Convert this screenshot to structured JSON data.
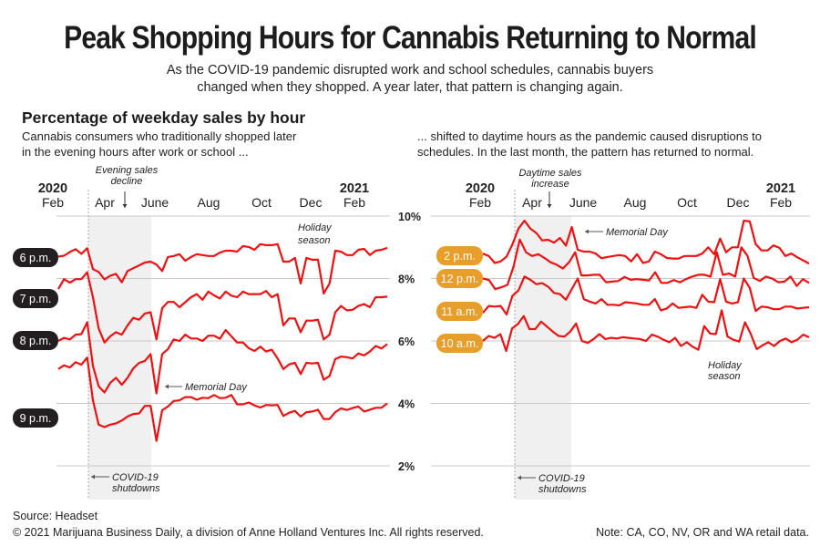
{
  "header": {
    "title": "Peak Shopping Hours for Cannabis Returning to Normal",
    "subtitle_line1": "As the COVID-19 pandemic disrupted work and school schedules, cannabis buyers",
    "subtitle_line2": "changed when they shopped. A year later, that pattern is changing again."
  },
  "section_title": "Percentage of weekday sales by hour",
  "left_desc_line1": "Cannabis consumers who traditionally shopped later",
  "left_desc_line2": "in the evening hours after work or school ...",
  "right_desc_line1": "... shifted to daytime hours as the pandemic caused disruptions to",
  "right_desc_line2": "schedules. In the last month, the pattern has returned to normal.",
  "footer": {
    "source": "Source: Headset",
    "copyright": "© 2021 Marijuana Business Daily, a division of Anne Holland Ventures Inc. All rights reserved.",
    "note": "Note: CA, CO, NV, OR and WA retail data."
  },
  "colors": {
    "line": "#ee1111",
    "evening_badge": "#231f20",
    "daytime_badge": "#e89e2a",
    "shade": "#f0f0f0",
    "grid": "#c8c8c8"
  },
  "chart_data": [
    {
      "type": "line",
      "title": "Percentage of weekday sales by hour — evening hours",
      "x_ticks": [
        {
          "year": "2020",
          "month": "Feb"
        },
        {
          "year": "",
          "month": "Apr"
        },
        {
          "year": "",
          "month": "June"
        },
        {
          "year": "",
          "month": "Aug"
        },
        {
          "year": "",
          "month": "Oct"
        },
        {
          "year": "",
          "month": "Dec"
        },
        {
          "year": "2021",
          "month": "Feb"
        }
      ],
      "x_range_months": [
        0,
        13.2
      ],
      "ylim": [
        2,
        10
      ],
      "grid_values": [
        10,
        8,
        6,
        4,
        2
      ],
      "y_tick_labels_shown": false,
      "annotations": {
        "shaded_period": "COVID-19 shutdowns (mid-Mar to late May 2020)",
        "evening_decline": "Evening sales decline",
        "memorial_day": "Memorial Day",
        "covid": "COVID-19 shutdowns",
        "holiday": "Holiday season"
      },
      "series": [
        {
          "name": "6 p.m.",
          "values": [
            8.7,
            8.73,
            8.85,
            8.94,
            8.79,
            8.97,
            8.3,
            8.21,
            7.97,
            8.09,
            8.15,
            7.88,
            8.24,
            8.33,
            8.42,
            8.51,
            8.54,
            8.45,
            8.24,
            8.69,
            8.72,
            8.78,
            8.57,
            8.69,
            8.78,
            8.75,
            8.72,
            8.72,
            8.83,
            8.89,
            8.89,
            8.86,
            9.04,
            9.01,
            8.92,
            9.1,
            9.07,
            9.07,
            9.1,
            8.54,
            8.54,
            8.66,
            7.84,
            8.66,
            8.6,
            8.6,
            7.52,
            7.84,
            8.89,
            8.86,
            8.75,
            8.75,
            8.92,
            8.95,
            8.75,
            8.89,
            8.92,
            8.98
          ]
        },
        {
          "name": "7 p.m.",
          "values": [
            7.66,
            7.98,
            7.87,
            7.98,
            7.98,
            8.2,
            7.4,
            6.4,
            5.95,
            6.15,
            6.28,
            6.2,
            6.5,
            6.74,
            6.68,
            6.88,
            6.92,
            6.05,
            7.05,
            7.25,
            7.25,
            7.08,
            7.24,
            7.4,
            7.5,
            7.32,
            7.58,
            7.46,
            7.36,
            7.58,
            7.45,
            7.4,
            7.58,
            7.5,
            7.5,
            7.5,
            7.6,
            7.4,
            7.5,
            6.5,
            6.72,
            6.72,
            6.28,
            6.65,
            6.65,
            6.68,
            6.05,
            6.2,
            6.92,
            7.12,
            6.98,
            7.0,
            7.12,
            7.18,
            7.08,
            7.4,
            7.4,
            7.42
          ]
        },
        {
          "name": "8 p.m.",
          "values": [
            6.0,
            6.1,
            6.05,
            6.2,
            6.22,
            6.6,
            5.2,
            4.55,
            4.35,
            4.66,
            4.82,
            4.6,
            4.82,
            5.12,
            5.3,
            5.36,
            5.58,
            4.32,
            5.58,
            5.74,
            6.05,
            6.0,
            6.2,
            6.08,
            6.08,
            6.0,
            6.17,
            6.17,
            6.07,
            6.35,
            6.15,
            5.95,
            5.95,
            5.77,
            5.68,
            5.82,
            5.66,
            5.72,
            5.44,
            5.1,
            5.25,
            5.3,
            4.94,
            5.3,
            5.28,
            5.3,
            4.76,
            4.88,
            5.42,
            5.5,
            5.48,
            5.44,
            5.6,
            5.54,
            5.66,
            5.84,
            5.76,
            5.9
          ]
        },
        {
          "name": "9 p.m.",
          "values": [
            5.1,
            5.22,
            5.15,
            5.32,
            5.24,
            5.47,
            4.1,
            3.32,
            3.24,
            3.32,
            3.36,
            3.45,
            3.58,
            3.66,
            3.68,
            3.92,
            3.92,
            2.8,
            3.78,
            3.9,
            4.08,
            4.1,
            4.2,
            4.2,
            4.12,
            4.18,
            4.17,
            4.27,
            4.17,
            4.18,
            4.27,
            3.97,
            3.97,
            4.03,
            3.94,
            3.87,
            3.95,
            3.94,
            3.95,
            3.6,
            3.7,
            3.76,
            3.58,
            3.72,
            3.74,
            3.8,
            3.5,
            3.5,
            3.72,
            3.84,
            3.79,
            3.85,
            3.9,
            3.74,
            3.8,
            3.86,
            3.86,
            4.0
          ]
        }
      ]
    },
    {
      "type": "line",
      "title": "Percentage of weekday sales by hour — daytime hours",
      "x_ticks": [
        {
          "year": "2020",
          "month": "Feb"
        },
        {
          "year": "",
          "month": "Apr"
        },
        {
          "year": "",
          "month": "June"
        },
        {
          "year": "",
          "month": "Aug"
        },
        {
          "year": "",
          "month": "Oct"
        },
        {
          "year": "",
          "month": "Dec"
        },
        {
          "year": "2021",
          "month": "Feb"
        }
      ],
      "x_range_months": [
        0,
        13.2
      ],
      "ylim": [
        2,
        10
      ],
      "y_ticks": [
        10,
        8,
        6,
        4,
        2
      ],
      "y_tick_labels": [
        "10%",
        "8%",
        "6%",
        "4%",
        "2%"
      ],
      "annotations": {
        "daytime_increase": "Daytime sales increase",
        "memorial_day": "Memorial Day",
        "covid": "COVID-19 shutdowns",
        "holiday": "Holiday season"
      },
      "series": [
        {
          "name": "2 p.m.",
          "values": [
            8.8,
            8.72,
            8.5,
            8.55,
            8.7,
            9.1,
            9.6,
            9.85,
            9.6,
            9.46,
            9.22,
            9.24,
            9.15,
            9.3,
            9.05,
            9.65,
            8.92,
            8.86,
            8.86,
            8.8,
            8.65,
            8.69,
            8.72,
            8.75,
            8.72,
            8.55,
            8.78,
            8.5,
            8.55,
            8.86,
            8.78,
            8.66,
            8.64,
            8.64,
            8.72,
            8.72,
            8.72,
            8.8,
            9.0,
            8.78,
            9.28,
            8.84,
            9.0,
            9.0,
            9.85,
            9.83,
            9.1,
            8.9,
            8.9,
            9.06,
            8.98,
            8.72,
            8.8,
            8.68,
            8.58,
            8.48
          ]
        },
        {
          "name": "12 p.m.",
          "values": [
            8.0,
            7.95,
            7.66,
            7.72,
            7.8,
            8.4,
            9.25,
            8.84,
            8.72,
            8.78,
            8.66,
            8.52,
            8.44,
            8.32,
            8.52,
            8.84,
            8.1,
            8.1,
            8.12,
            8.12,
            7.88,
            7.9,
            7.92,
            8.05,
            7.96,
            7.98,
            7.96,
            7.94,
            8.2,
            7.86,
            7.86,
            7.95,
            7.88,
            7.98,
            8.06,
            8.12,
            8.12,
            8.06,
            8.84,
            8.12,
            8.16,
            8.06,
            9.0,
            8.72,
            8.02,
            7.92,
            8.06,
            8.0,
            7.88,
            7.9,
            8.06,
            7.76,
            7.98,
            7.86
          ]
        },
        {
          "name": "11 a.m.",
          "values": [
            6.9,
            7.12,
            7.1,
            7.12,
            6.85,
            7.45,
            7.62,
            8.06,
            7.96,
            7.82,
            7.85,
            7.74,
            7.54,
            7.5,
            7.32,
            7.66,
            8.0,
            7.34,
            7.26,
            7.2,
            7.34,
            7.16,
            7.16,
            7.14,
            7.24,
            7.22,
            7.2,
            7.16,
            7.16,
            7.34,
            6.98,
            7.04,
            7.2,
            7.06,
            7.08,
            7.1,
            7.06,
            7.48,
            7.26,
            7.24,
            7.98,
            7.26,
            7.2,
            7.24,
            8.0,
            7.7,
            6.96,
            7.1,
            7.08,
            7.02,
            7.02,
            7.1,
            7.1,
            7.04,
            7.06,
            7.08
          ]
        },
        {
          "name": "10 a.m.",
          "values": [
            6.0,
            6.16,
            6.1,
            6.22,
            5.68,
            6.4,
            6.54,
            6.8,
            6.38,
            6.38,
            6.62,
            6.46,
            6.3,
            6.16,
            6.14,
            6.3,
            6.56,
            6.0,
            5.94,
            6.06,
            6.22,
            6.06,
            6.1,
            6.08,
            6.12,
            6.1,
            6.08,
            6.06,
            6.0,
            6.2,
            6.14,
            6.04,
            5.96,
            6.1,
            5.84,
            5.96,
            5.82,
            5.72,
            6.48,
            6.24,
            6.22,
            6.98,
            6.14,
            6.04,
            5.98,
            6.6,
            6.22,
            5.74,
            5.86,
            5.96,
            5.84,
            6.0,
            6.08,
            5.96,
            6.04,
            6.2,
            6.12
          ]
        }
      ]
    }
  ]
}
